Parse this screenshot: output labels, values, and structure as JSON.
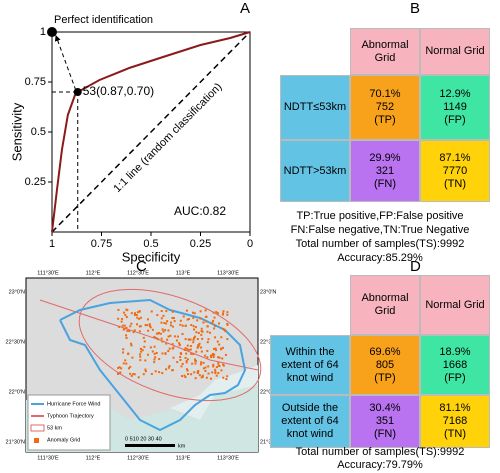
{
  "chart_data": {
    "type": "line",
    "panel_label": "A",
    "xlabel": "Specificity",
    "ylabel": "Sensitivity",
    "xlim": [
      1,
      0
    ],
    "ylim": [
      0,
      1
    ],
    "xticks": [
      1,
      0.75,
      0.5,
      0.25,
      0
    ],
    "yticks": [
      0.25,
      0.5,
      0.75,
      1
    ],
    "series": [
      {
        "color": "#8b1a1a",
        "x": [
          1,
          0.975,
          0.95,
          0.92,
          0.884,
          0.87,
          0.76,
          0.61,
          0.455,
          0.25,
          0.1,
          0
        ],
        "values": [
          0,
          0.21,
          0.41,
          0.585,
          0.685,
          0.7,
          0.76,
          0.82,
          0.87,
          0.935,
          0.97,
          1
        ]
      }
    ],
    "annotations": {
      "perfect": {
        "text": "Perfect identification",
        "x": 1,
        "y": 1
      },
      "threshold": {
        "text": "53(0.87,0.70)",
        "x": 0.87,
        "y": 0.7
      },
      "diagonal": "1:1 line (random classification)",
      "auc": "AUC:0.82"
    }
  },
  "table_b": {
    "label": "B",
    "col_headers": [
      "Abnormal Grid",
      "Normal Grid"
    ],
    "row_headers": [
      "NDTT≤53km",
      "NDTT>53km"
    ],
    "cells": [
      [
        [
          "70.1%",
          "752",
          "(TP)"
        ],
        [
          "12.9%",
          "1149",
          "(FP)"
        ]
      ],
      [
        [
          "29.9%",
          "321",
          "(FN)"
        ],
        [
          "87.1%",
          "7770",
          "(TN)"
        ]
      ]
    ],
    "notes": [
      "TP:True positive,FP:False positive",
      "FN:False negative,TN:True Negative",
      "Total number of samples(TS):9992",
      "Accuracy:85.29%"
    ]
  },
  "map_c": {
    "label": "C",
    "lon_labels": [
      "111°30′E",
      "112°E",
      "112°30′E",
      "113°E",
      "113°30′E"
    ],
    "lat_labels": [
      "23°0′N",
      "22°30′N",
      "22°0′N",
      "21°30′N"
    ],
    "legend": [
      "Hurricane Force Wind",
      "Typhoon Trajectory",
      "53 km",
      "Anomaly Grid"
    ],
    "scale": "0 510 20 30 40",
    "scale_unit": "km"
  },
  "table_d": {
    "label": "D",
    "col_headers": [
      "Abnormal Grid",
      "Normal Grid"
    ],
    "row_headers": [
      "Within the extent of 64 knot wind",
      "Outside the extent of 64 knot wind"
    ],
    "cells": [
      [
        [
          "69.6%",
          "805",
          "(TP)"
        ],
        [
          "18.9%",
          "1668",
          "(FP)"
        ]
      ],
      [
        [
          "30.4%",
          "351",
          "(FN)"
        ],
        [
          "81.1%",
          "7168",
          "(TN)"
        ]
      ]
    ],
    "notes": [
      "Total number of samples(TS):9992",
      "Accuracy:79.79%"
    ]
  }
}
